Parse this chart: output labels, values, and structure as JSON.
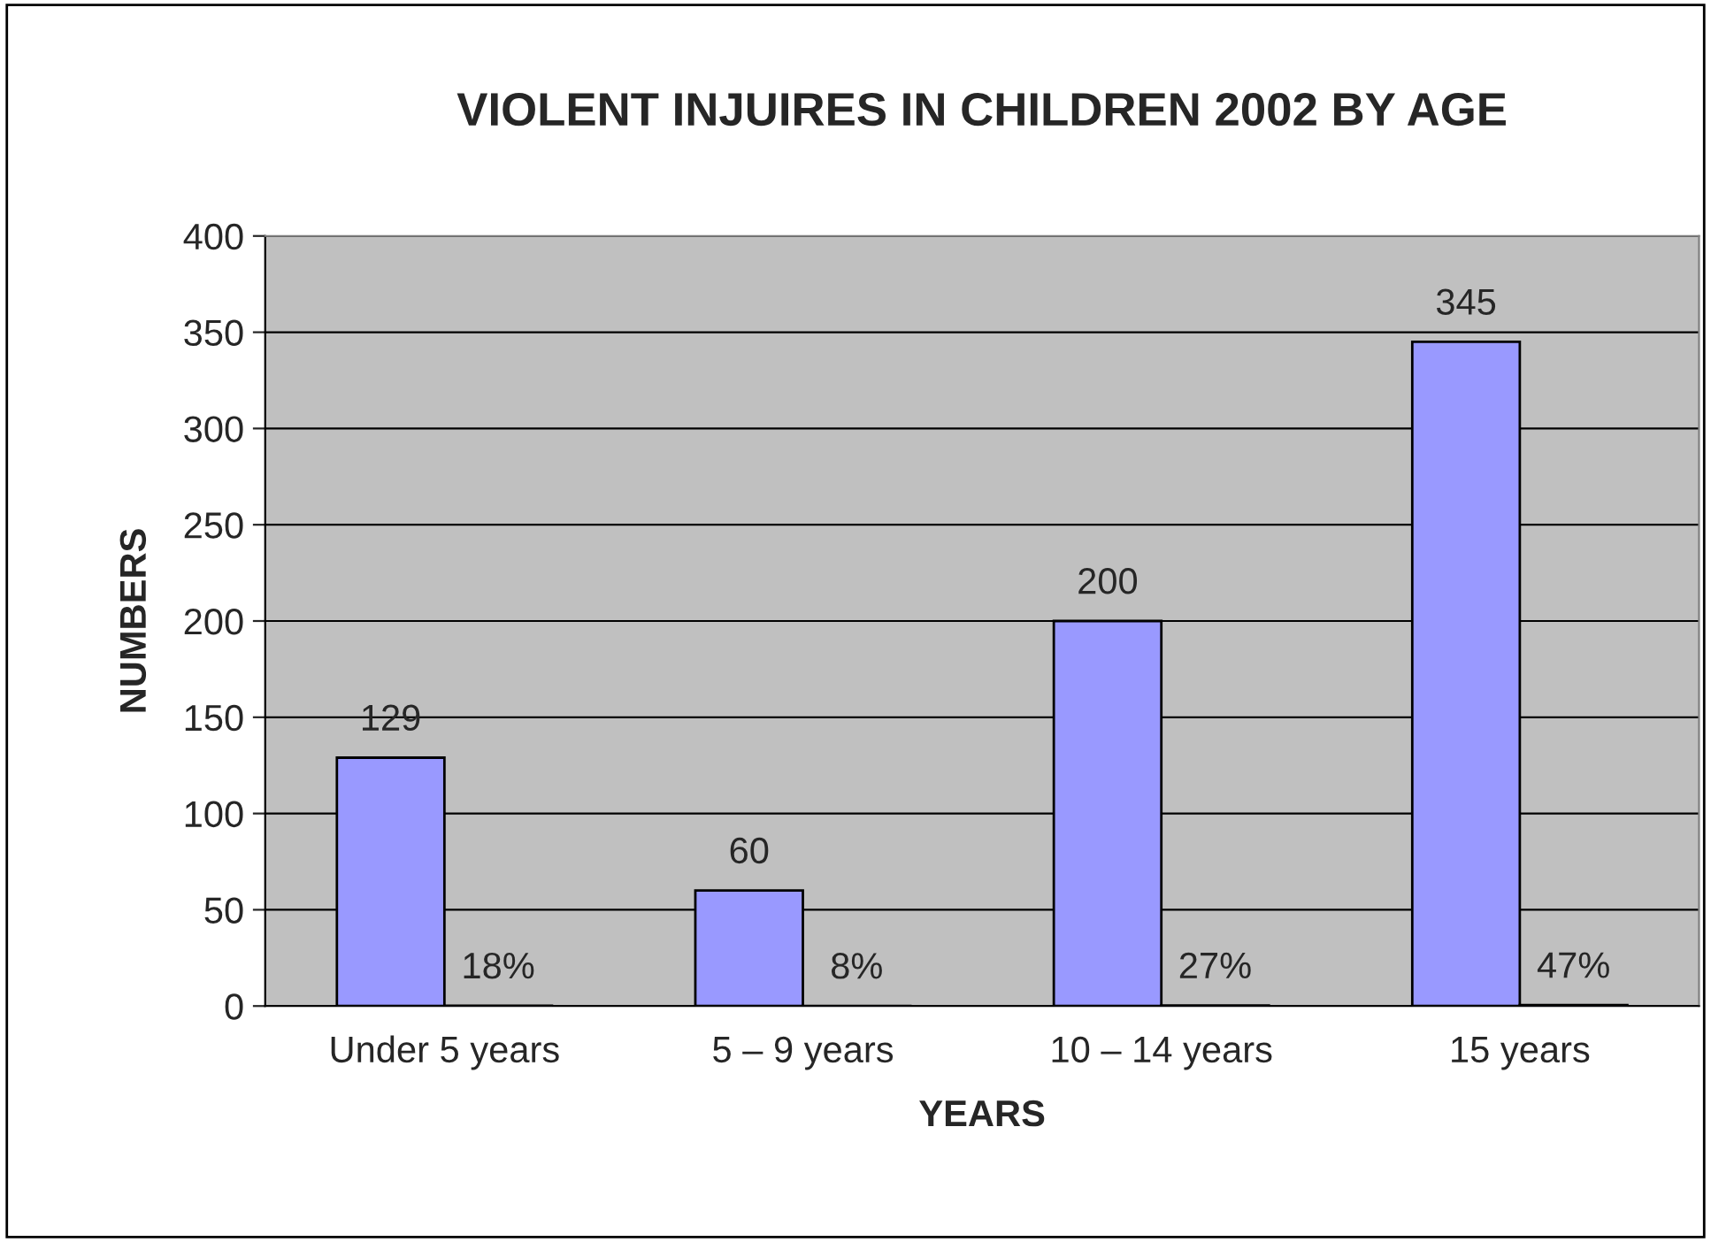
{
  "chart_data": {
    "type": "bar",
    "title": "VIOLENT INJUIRES IN CHILDREN 2002 BY AGE",
    "xlabel": "YEARS",
    "ylabel": "NUMBERS",
    "categories": [
      "Under 5 years",
      "5 – 9 years",
      "10 – 14 years",
      "15 years"
    ],
    "series": [
      {
        "color": "#9999ff",
        "values": [
          129,
          60,
          200,
          345
        ],
        "value_labels": [
          "129",
          "60",
          "200",
          "345"
        ]
      },
      {
        "color": "#9999ff",
        "values": [
          0.18,
          0.08,
          0.27,
          0.47
        ],
        "value_labels": [
          "18%",
          "8%",
          "27%",
          "47%"
        ]
      }
    ],
    "ylim": [
      0,
      400
    ],
    "yticks": [
      0,
      50,
      100,
      150,
      200,
      250,
      300,
      350,
      400
    ],
    "grid": "y",
    "legend": false
  }
}
